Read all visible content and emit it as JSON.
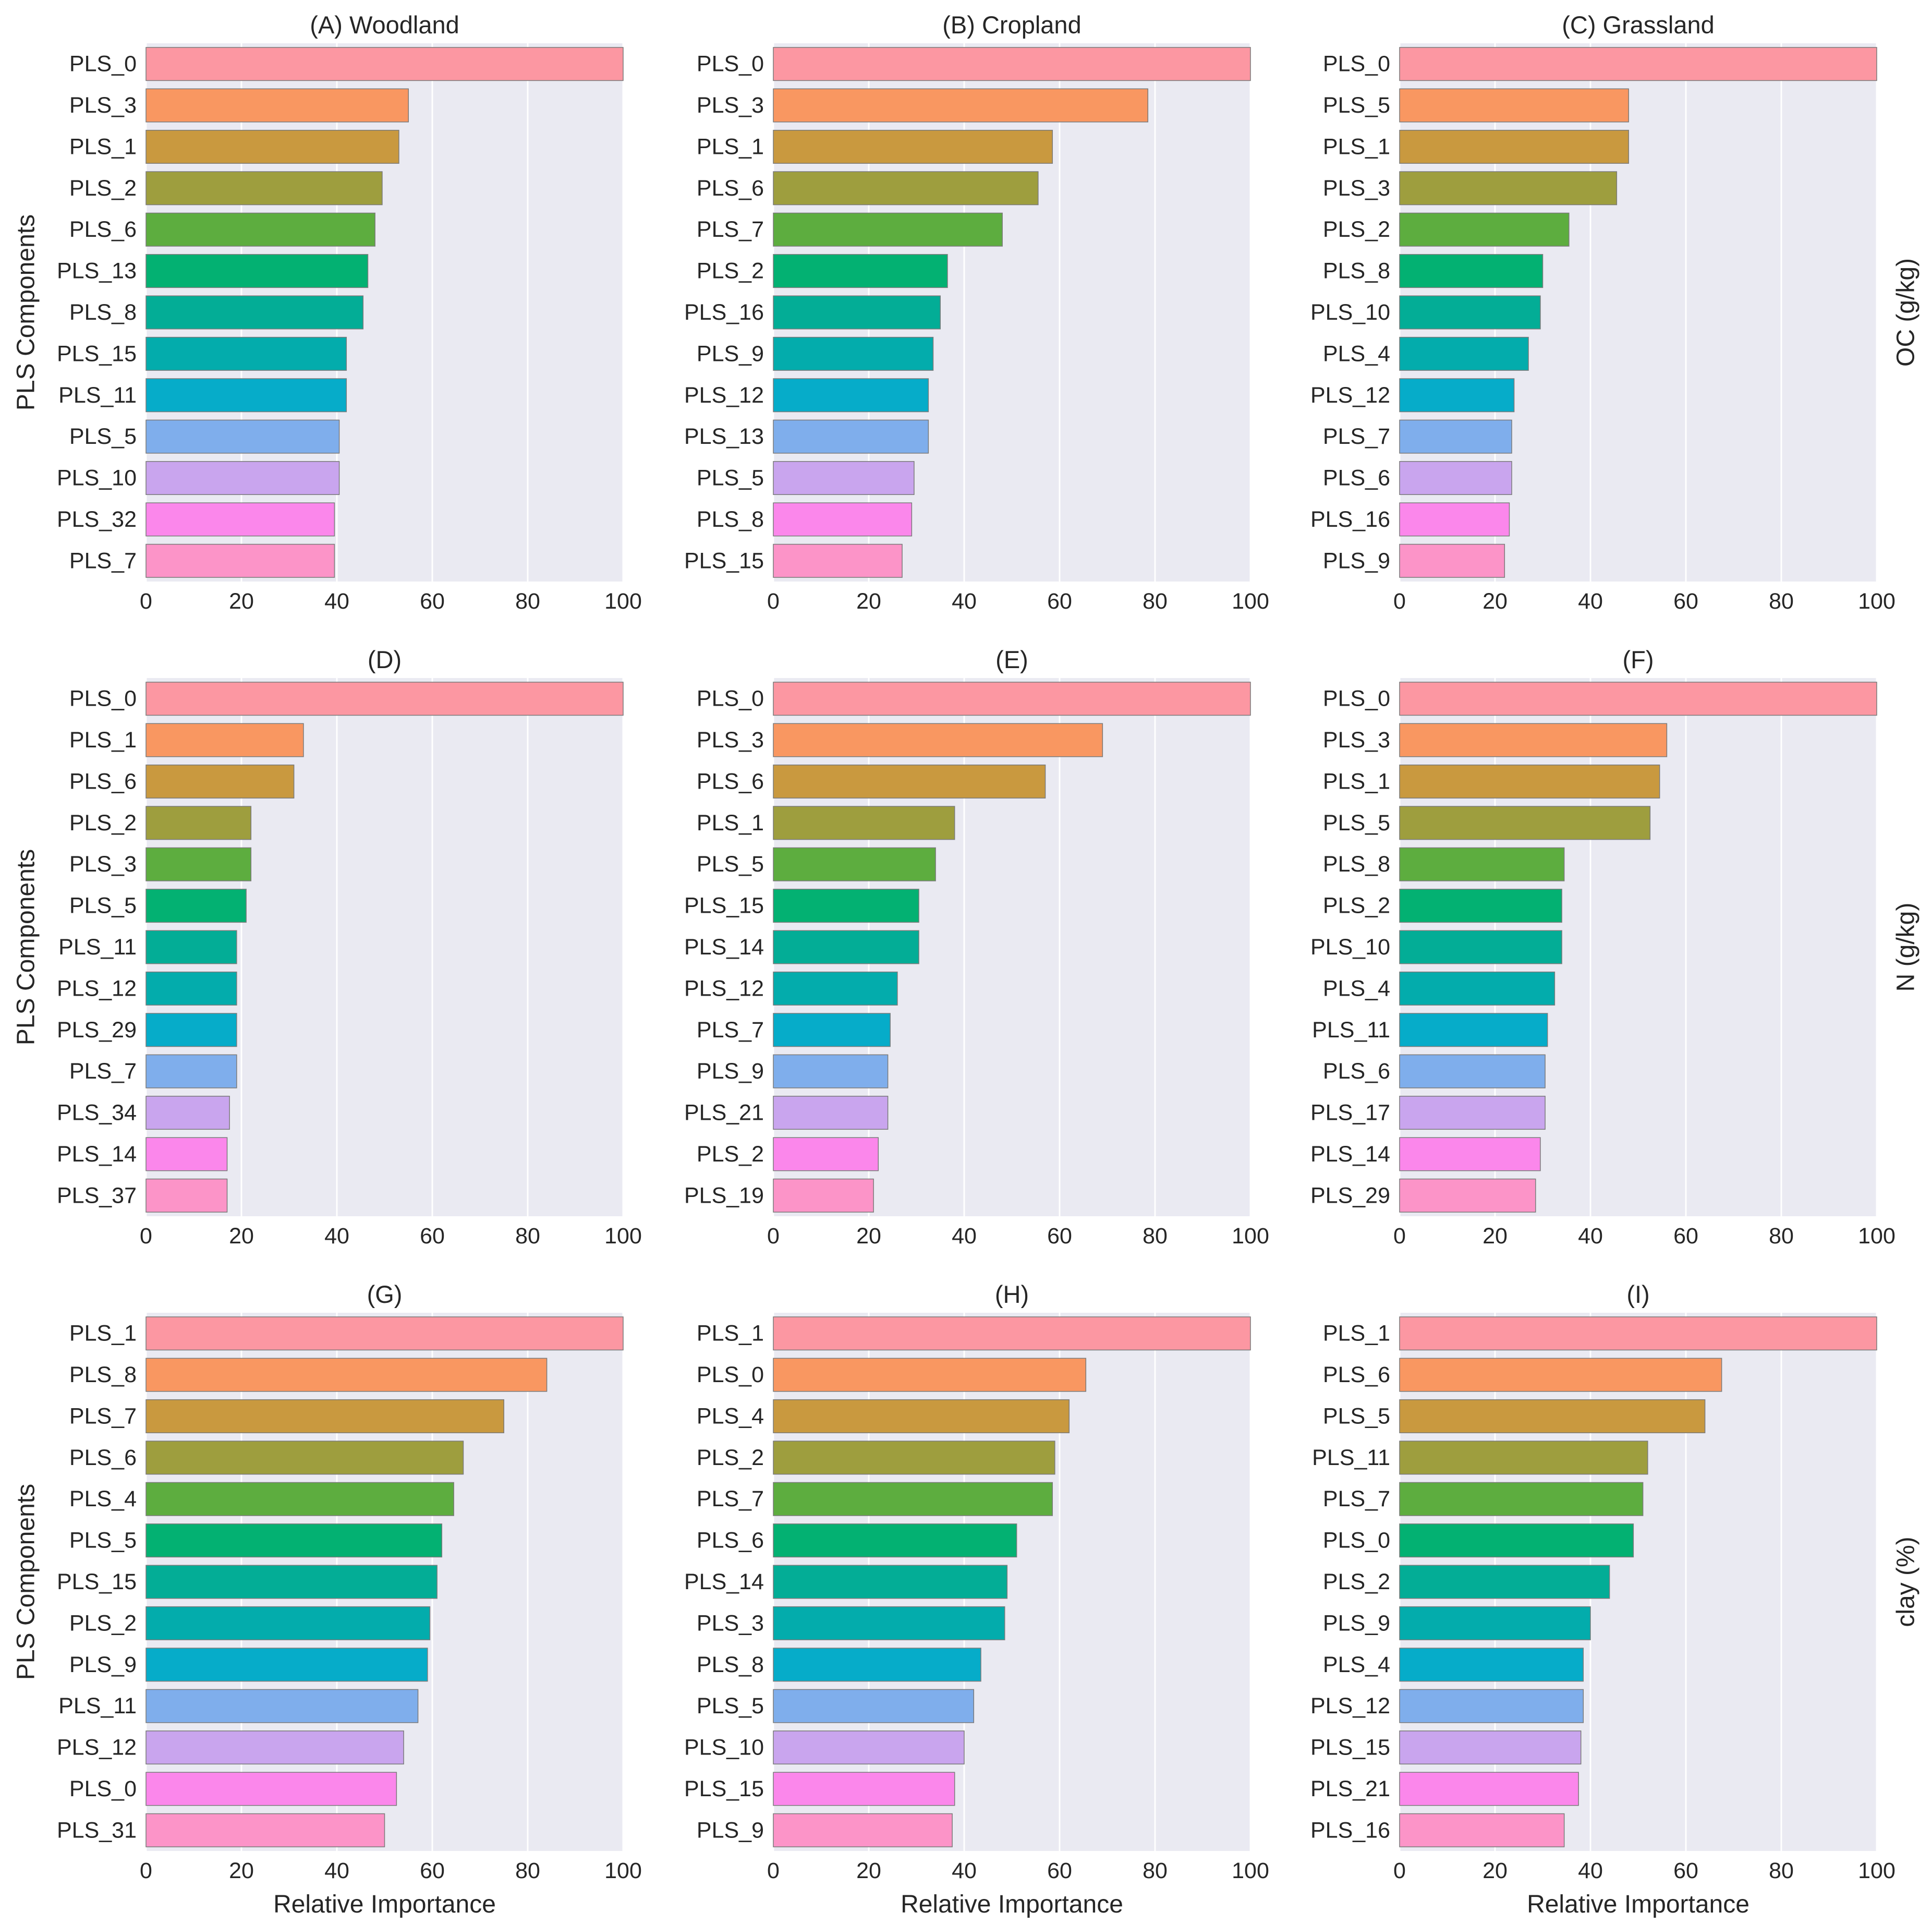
{
  "figure": {
    "colors": [
      "#fc97a2",
      "#f99761",
      "#c9993f",
      "#9e9e3e",
      "#5dad3f",
      "#03b172",
      "#03ad96",
      "#03acac",
      "#06acc9",
      "#7faeec",
      "#c9a5ee",
      "#fb87eb",
      "#fc94c8"
    ],
    "background": "#eaeaf2",
    "grid_color": "#ffffff"
  },
  "chart_data": [
    {
      "type": "bar",
      "orientation": "horizontal",
      "title": "(A) Woodland",
      "categories": [
        "PLS_0",
        "PLS_3",
        "PLS_1",
        "PLS_2",
        "PLS_6",
        "PLS_13",
        "PLS_8",
        "PLS_15",
        "PLS_11",
        "PLS_5",
        "PLS_10",
        "PLS_32",
        "PLS_7"
      ],
      "values": [
        100,
        55,
        53,
        49.5,
        48,
        46.5,
        45.5,
        42,
        42,
        40.5,
        40.5,
        39.5,
        39.5
      ],
      "xlim": [
        0,
        100
      ],
      "xticks": [
        0,
        20,
        40,
        60,
        80,
        100
      ],
      "xlabel": "",
      "ylabel": "PLS Components",
      "row_label": "",
      "grid": true
    },
    {
      "type": "bar",
      "orientation": "horizontal",
      "title": "(B) Cropland",
      "categories": [
        "PLS_0",
        "PLS_3",
        "PLS_1",
        "PLS_6",
        "PLS_7",
        "PLS_2",
        "PLS_16",
        "PLS_9",
        "PLS_12",
        "PLS_13",
        "PLS_5",
        "PLS_8",
        "PLS_15"
      ],
      "values": [
        100,
        78.5,
        58.5,
        55.5,
        48,
        36.5,
        35,
        33.5,
        32.5,
        32.5,
        29.5,
        29,
        27
      ],
      "xlim": [
        0,
        100
      ],
      "xticks": [
        0,
        20,
        40,
        60,
        80,
        100
      ],
      "xlabel": "",
      "ylabel": "",
      "row_label": "",
      "grid": true
    },
    {
      "type": "bar",
      "orientation": "horizontal",
      "title": "(C) Grassland",
      "categories": [
        "PLS_0",
        "PLS_5",
        "PLS_1",
        "PLS_3",
        "PLS_2",
        "PLS_8",
        "PLS_10",
        "PLS_4",
        "PLS_12",
        "PLS_7",
        "PLS_6",
        "PLS_16",
        "PLS_9"
      ],
      "values": [
        100,
        48,
        48,
        45.5,
        35.5,
        30,
        29.5,
        27,
        24,
        23.5,
        23.5,
        23,
        22
      ],
      "xlim": [
        0,
        100
      ],
      "xticks": [
        0,
        20,
        40,
        60,
        80,
        100
      ],
      "xlabel": "",
      "ylabel": "",
      "row_label": "OC (g/kg)",
      "grid": true
    },
    {
      "type": "bar",
      "orientation": "horizontal",
      "title": "(D)",
      "categories": [
        "PLS_0",
        "PLS_1",
        "PLS_6",
        "PLS_2",
        "PLS_3",
        "PLS_5",
        "PLS_11",
        "PLS_12",
        "PLS_29",
        "PLS_7",
        "PLS_34",
        "PLS_14",
        "PLS_37"
      ],
      "values": [
        100,
        33,
        31,
        22,
        22,
        21,
        19,
        19,
        19,
        19,
        17.5,
        17,
        17
      ],
      "xlim": [
        0,
        100
      ],
      "xticks": [
        0,
        20,
        40,
        60,
        80,
        100
      ],
      "xlabel": "",
      "ylabel": "PLS Components",
      "row_label": "",
      "grid": true
    },
    {
      "type": "bar",
      "orientation": "horizontal",
      "title": "(E)",
      "categories": [
        "PLS_0",
        "PLS_3",
        "PLS_6",
        "PLS_1",
        "PLS_5",
        "PLS_15",
        "PLS_14",
        "PLS_12",
        "PLS_7",
        "PLS_9",
        "PLS_21",
        "PLS_2",
        "PLS_19"
      ],
      "values": [
        100,
        69,
        57,
        38,
        34,
        30.5,
        30.5,
        26,
        24.5,
        24,
        24,
        22,
        21
      ],
      "xlim": [
        0,
        100
      ],
      "xticks": [
        0,
        20,
        40,
        60,
        80,
        100
      ],
      "xlabel": "",
      "ylabel": "",
      "row_label": "",
      "grid": true
    },
    {
      "type": "bar",
      "orientation": "horizontal",
      "title": "(F)",
      "categories": [
        "PLS_0",
        "PLS_3",
        "PLS_1",
        "PLS_5",
        "PLS_8",
        "PLS_2",
        "PLS_10",
        "PLS_4",
        "PLS_11",
        "PLS_6",
        "PLS_17",
        "PLS_14",
        "PLS_29"
      ],
      "values": [
        100,
        56,
        54.5,
        52.5,
        34.5,
        34,
        34,
        32.5,
        31,
        30.5,
        30.5,
        29.5,
        28.5
      ],
      "xlim": [
        0,
        100
      ],
      "xticks": [
        0,
        20,
        40,
        60,
        80,
        100
      ],
      "xlabel": "",
      "ylabel": "",
      "row_label": "N (g/kg)",
      "grid": true
    },
    {
      "type": "bar",
      "orientation": "horizontal",
      "title": "(G)",
      "categories": [
        "PLS_1",
        "PLS_8",
        "PLS_7",
        "PLS_6",
        "PLS_4",
        "PLS_5",
        "PLS_15",
        "PLS_2",
        "PLS_9",
        "PLS_11",
        "PLS_12",
        "PLS_0",
        "PLS_31"
      ],
      "values": [
        100,
        84,
        75,
        66.5,
        64.5,
        62,
        61,
        59.5,
        59,
        57,
        54,
        52.5,
        50
      ],
      "xlim": [
        0,
        100
      ],
      "xticks": [
        0,
        20,
        40,
        60,
        80,
        100
      ],
      "xlabel": "Relative Importance",
      "ylabel": "PLS Components",
      "row_label": "",
      "grid": true
    },
    {
      "type": "bar",
      "orientation": "horizontal",
      "title": "(H)",
      "categories": [
        "PLS_1",
        "PLS_0",
        "PLS_4",
        "PLS_2",
        "PLS_7",
        "PLS_6",
        "PLS_14",
        "PLS_3",
        "PLS_8",
        "PLS_5",
        "PLS_10",
        "PLS_15",
        "PLS_9"
      ],
      "values": [
        100,
        65.5,
        62,
        59,
        58.5,
        51,
        49,
        48.5,
        43.5,
        42,
        40,
        38,
        37.5
      ],
      "xlim": [
        0,
        100
      ],
      "xticks": [
        0,
        20,
        40,
        60,
        80,
        100
      ],
      "xlabel": "Relative Importance",
      "ylabel": "",
      "row_label": "",
      "grid": true
    },
    {
      "type": "bar",
      "orientation": "horizontal",
      "title": "(I)",
      "categories": [
        "PLS_1",
        "PLS_6",
        "PLS_5",
        "PLS_11",
        "PLS_7",
        "PLS_0",
        "PLS_2",
        "PLS_9",
        "PLS_4",
        "PLS_12",
        "PLS_15",
        "PLS_21",
        "PLS_16"
      ],
      "values": [
        100,
        67.5,
        64,
        52,
        51,
        49,
        44,
        40,
        38.5,
        38.5,
        38,
        37.5,
        34.5
      ],
      "xlim": [
        0,
        100
      ],
      "xticks": [
        0,
        20,
        40,
        60,
        80,
        100
      ],
      "xlabel": "Relative Importance",
      "ylabel": "",
      "row_label": "clay (%)",
      "grid": true
    }
  ]
}
